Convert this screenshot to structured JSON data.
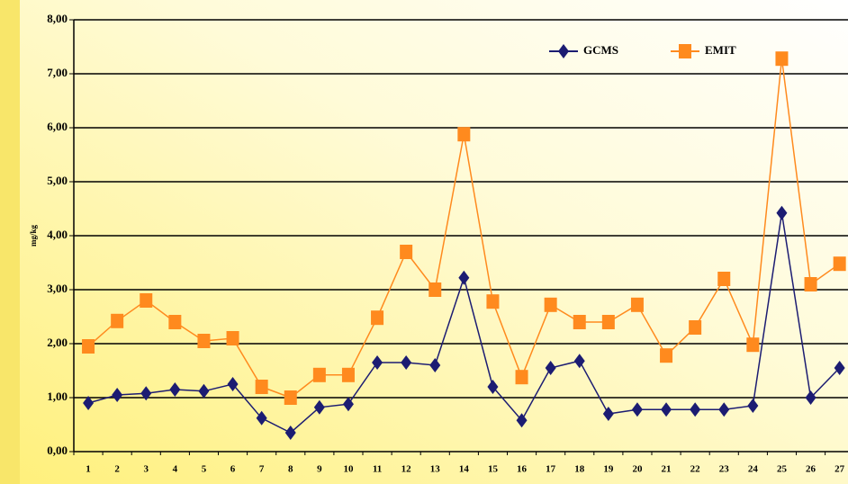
{
  "chart_data": {
    "type": "line",
    "y_label": "mg/kg",
    "categories": [
      "1",
      "2",
      "3",
      "4",
      "5",
      "6",
      "7",
      "8",
      "9",
      "10",
      "11",
      "12",
      "13",
      "14",
      "15",
      "16",
      "17",
      "18",
      "19",
      "20",
      "21",
      "22",
      "23",
      "24",
      "25",
      "26",
      "27"
    ],
    "series": [
      {
        "name": "GCMS",
        "color": "#1c1c72",
        "marker": "diamond",
        "values": [
          0.9,
          1.05,
          1.08,
          1.15,
          1.12,
          1.25,
          0.62,
          0.35,
          0.82,
          0.88,
          1.65,
          1.65,
          1.6,
          3.22,
          1.2,
          0.58,
          1.55,
          1.68,
          0.7,
          0.78,
          0.78,
          0.78,
          0.78,
          0.85,
          4.42,
          1.0,
          1.55
        ]
      },
      {
        "name": "EMIT",
        "color": "#ff8a1e",
        "marker": "square",
        "values": [
          1.95,
          2.42,
          2.8,
          2.4,
          2.05,
          2.1,
          1.2,
          1.0,
          1.42,
          1.42,
          2.48,
          3.7,
          3.0,
          5.88,
          2.78,
          1.38,
          2.72,
          2.4,
          2.4,
          2.72,
          1.78,
          2.3,
          3.2,
          1.98,
          7.28,
          3.1,
          3.48
        ]
      }
    ],
    "ylim": [
      0,
      8
    ],
    "yticks": [
      {
        "value": 0,
        "label": "0,00"
      },
      {
        "value": 1,
        "label": "1,00"
      },
      {
        "value": 2,
        "label": "2,00"
      },
      {
        "value": 3,
        "label": "3,00"
      },
      {
        "value": 4,
        "label": "4,00"
      },
      {
        "value": 5,
        "label": "5,00"
      },
      {
        "value": 6,
        "label": "6,00"
      },
      {
        "value": 7,
        "label": "7,00"
      },
      {
        "value": 8,
        "label": "8,00"
      }
    ],
    "grid": true,
    "legend": "top-right"
  }
}
